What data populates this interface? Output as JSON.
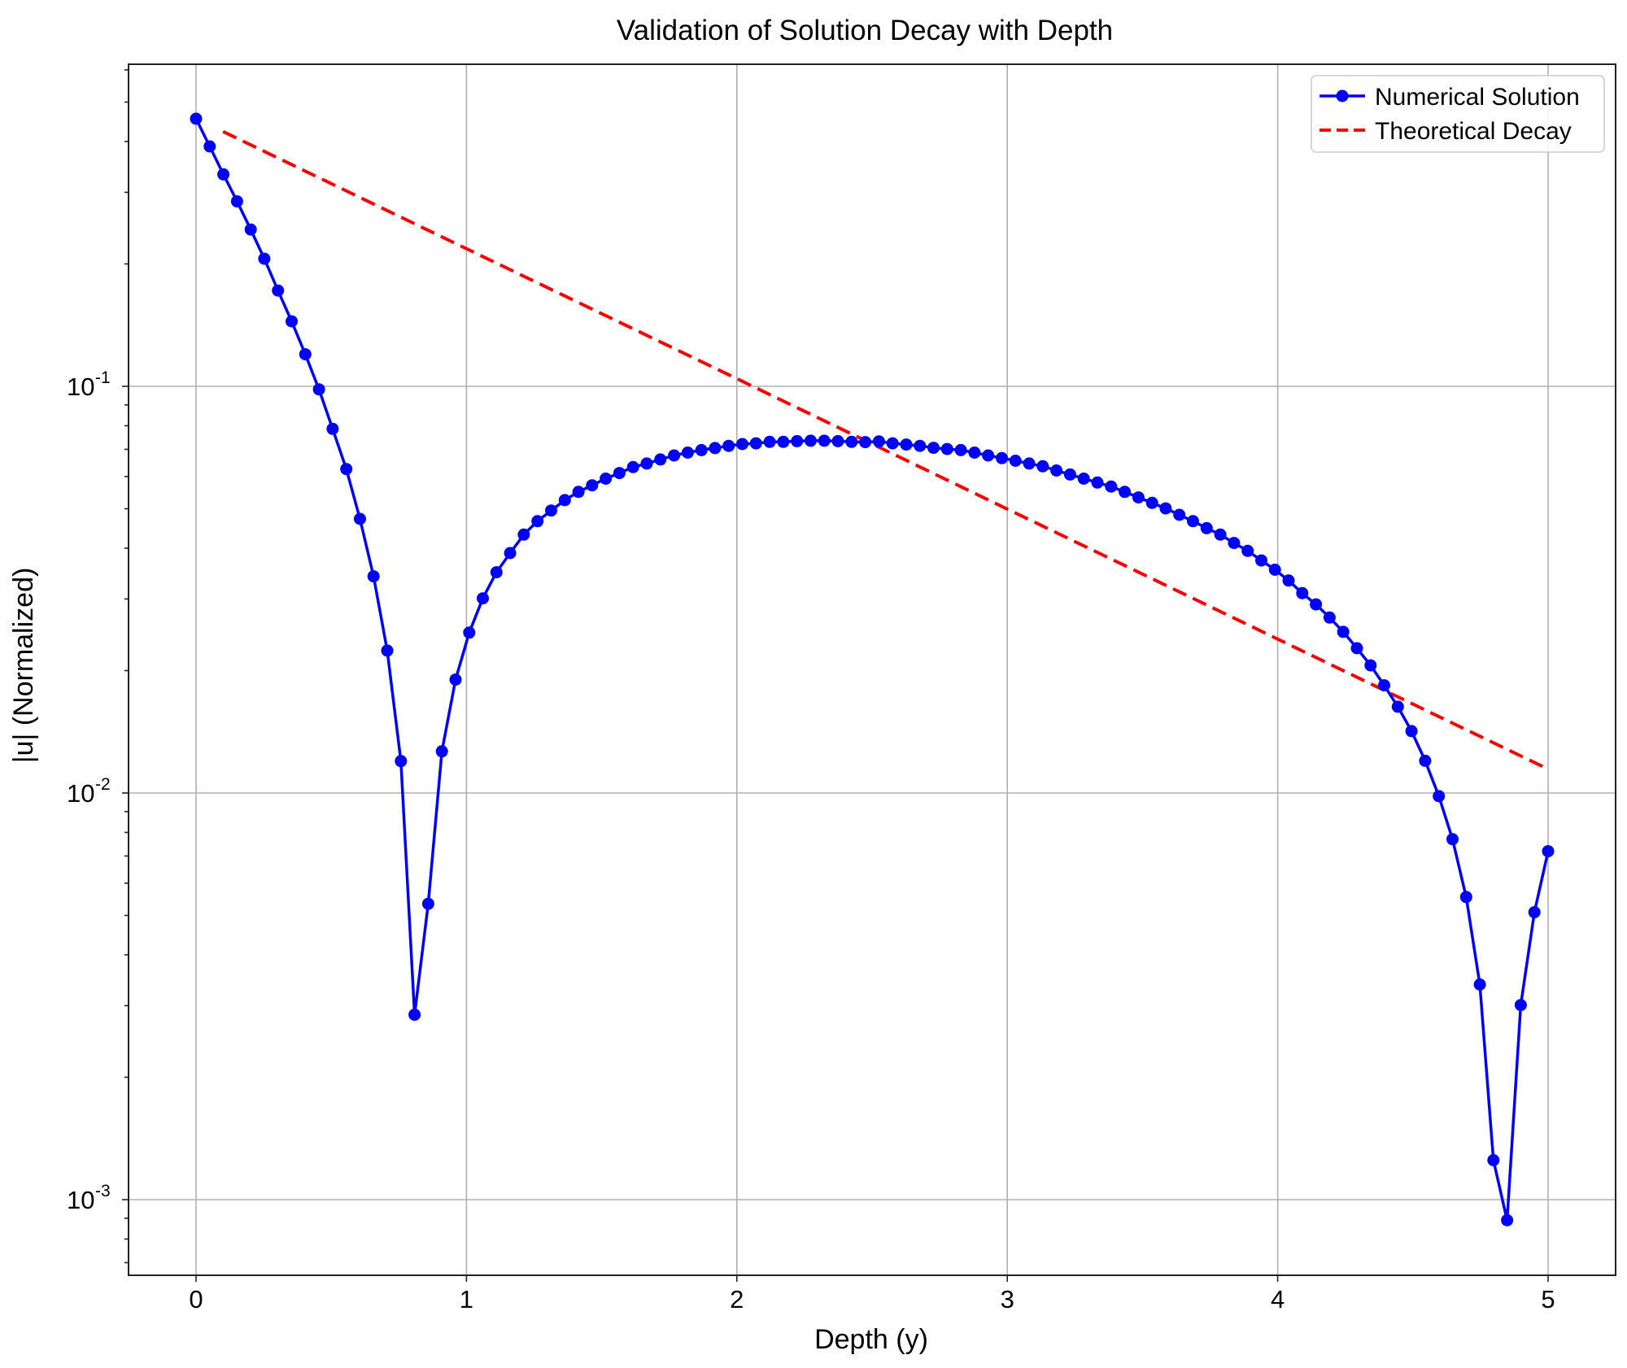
{
  "chart_data": {
    "type": "line",
    "title": "Validation of Solution Decay with Depth",
    "xlabel": "Depth (y)",
    "ylabel": "|u| (Normalized)",
    "xscale": "linear",
    "yscale": "log",
    "xlim": [
      -0.25,
      5.25
    ],
    "ylim": [
      0.00065,
      0.62
    ],
    "xticks": [
      0,
      1,
      2,
      3,
      4,
      5
    ],
    "xtick_labels": [
      "0",
      "1",
      "2",
      "3",
      "4",
      "5"
    ],
    "yticks": [
      0.1,
      0.01,
      0.001
    ],
    "ytick_labels": [
      {
        "base": "10",
        "exp": "-1"
      },
      {
        "base": "10",
        "exp": "-2"
      },
      {
        "base": "10",
        "exp": "-3"
      }
    ],
    "grid": true,
    "legend_position": "upper right",
    "legend": [
      {
        "label": "Numerical Solution",
        "color": "#0000ff",
        "style": "solid-with-markers"
      },
      {
        "label": "Theoretical Decay",
        "color": "#ff0000",
        "style": "dashed"
      }
    ],
    "series": [
      {
        "name": "Numerical Solution",
        "color": "#0000ff",
        "x_spec": "linspace(0, 5, 100)",
        "x_start": 0,
        "x_end": 5,
        "n_points": 100,
        "values": [
          0.455,
          0.389,
          0.332,
          0.285,
          0.243,
          0.206,
          0.172,
          0.1445,
          0.1199,
          0.0983,
          0.0786,
          0.0626,
          0.0472,
          0.0341,
          0.0224,
          0.01198,
          0.00285,
          0.00534,
          0.01266,
          0.019,
          0.0248,
          0.0301,
          0.0349,
          0.0389,
          0.0432,
          0.0466,
          0.0495,
          0.0525,
          0.055,
          0.0571,
          0.0593,
          0.0612,
          0.0633,
          0.0646,
          0.0661,
          0.0676,
          0.0687,
          0.0697,
          0.0705,
          0.0714,
          0.0721,
          0.0724,
          0.073,
          0.073,
          0.0733,
          0.0735,
          0.0735,
          0.0733,
          0.073,
          0.0729,
          0.0732,
          0.0724,
          0.0719,
          0.0714,
          0.0706,
          0.0701,
          0.0697,
          0.0687,
          0.0676,
          0.0666,
          0.0656,
          0.0646,
          0.0636,
          0.0621,
          0.0607,
          0.0593,
          0.058,
          0.0567,
          0.055,
          0.0533,
          0.0517,
          0.0501,
          0.0483,
          0.0466,
          0.0448,
          0.0432,
          0.0412,
          0.0394,
          0.0373,
          0.0354,
          0.0333,
          0.031,
          0.0291,
          0.027,
          0.0249,
          0.0227,
          0.0206,
          0.0184,
          0.0163,
          0.0142,
          0.012,
          0.00982,
          0.0077,
          0.00555,
          0.00338,
          0.00125,
          0.00089,
          0.00301,
          0.00509,
          0.00719
        ]
      },
      {
        "name": "Theoretical Decay",
        "color": "#ff0000",
        "x": [
          0.1,
          1.0,
          2.0,
          3.0,
          4.0,
          5.0
        ],
        "values": [
          0.423,
          0.218,
          0.1044,
          0.0499,
          0.0239,
          0.01145
        ]
      }
    ]
  }
}
